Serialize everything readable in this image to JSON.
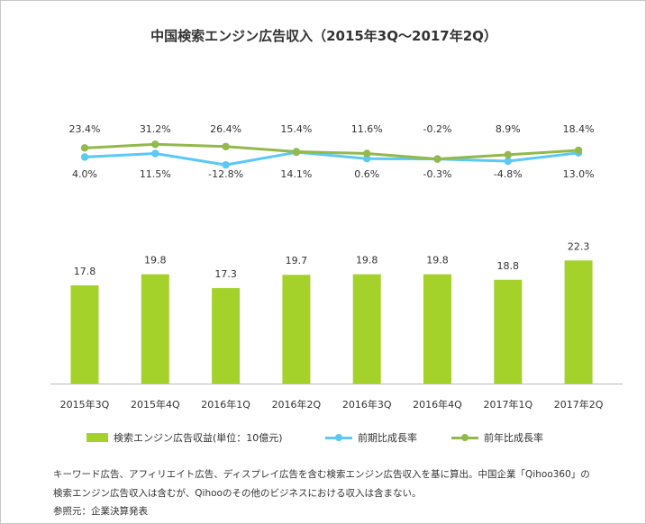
{
  "title": "中国検索エンジン広告収入（2015年3Q～2017年2Q）",
  "colors": {
    "bar": "#a5d12b",
    "qoq": "#5bc8f5",
    "yoy": "#92b94a",
    "axis": "#bbbbbb"
  },
  "legend": {
    "bar_label": "検索エンジン広告収益(単位：10億元)",
    "qoq_label": "前期比成長率",
    "yoy_label": "前年比成長率"
  },
  "notes": {
    "line1": "キーワード広告、アフィリエイト広告、ディスプレイ広告を含む検索エンジン広告収入を基に算出。中国企業「Qihoo360」の",
    "line2": "検索エンジン広告収入は含むが、Qihooのその他のビジネスにおける収入は含まない。",
    "source": "参照元：企業決算発表"
  },
  "chart_data": {
    "type": "bar",
    "categories": [
      "2015年3Q",
      "2015年4Q",
      "2016年1Q",
      "2016年2Q",
      "2016年3Q",
      "2016年4Q",
      "2017年1Q",
      "2017年2Q"
    ],
    "values": [
      17.8,
      19.8,
      17.3,
      19.7,
      19.8,
      19.8,
      18.8,
      22.3
    ],
    "value_labels": [
      "17.8",
      "19.8",
      "17.3",
      "19.7",
      "19.8",
      "19.8",
      "18.8",
      "22.3"
    ],
    "series": [
      {
        "name": "検索エンジン広告収益(単位：10億元)",
        "type": "bar",
        "values": [
          17.8,
          19.8,
          17.3,
          19.7,
          19.8,
          19.8,
          18.8,
          22.3
        ]
      },
      {
        "name": "前期比成長率",
        "type": "line",
        "unit": "%",
        "values": [
          4.0,
          11.5,
          -12.8,
          14.1,
          0.6,
          -0.3,
          -4.8,
          13.0
        ],
        "labels": [
          "4.0%",
          "11.5%",
          "-12.8%",
          "14.1%",
          "0.6%",
          "-0.3%",
          "-4.8%",
          "13.0%"
        ]
      },
      {
        "name": "前年比成長率",
        "type": "line",
        "unit": "%",
        "values": [
          23.4,
          31.2,
          26.4,
          15.4,
          11.6,
          -0.2,
          8.9,
          18.4
        ],
        "labels": [
          "23.4%",
          "31.2%",
          "26.4%",
          "15.4%",
          "11.6%",
          "-0.2%",
          "8.9%",
          "18.4%"
        ]
      }
    ],
    "grid": false,
    "legend_position": "bottom"
  }
}
